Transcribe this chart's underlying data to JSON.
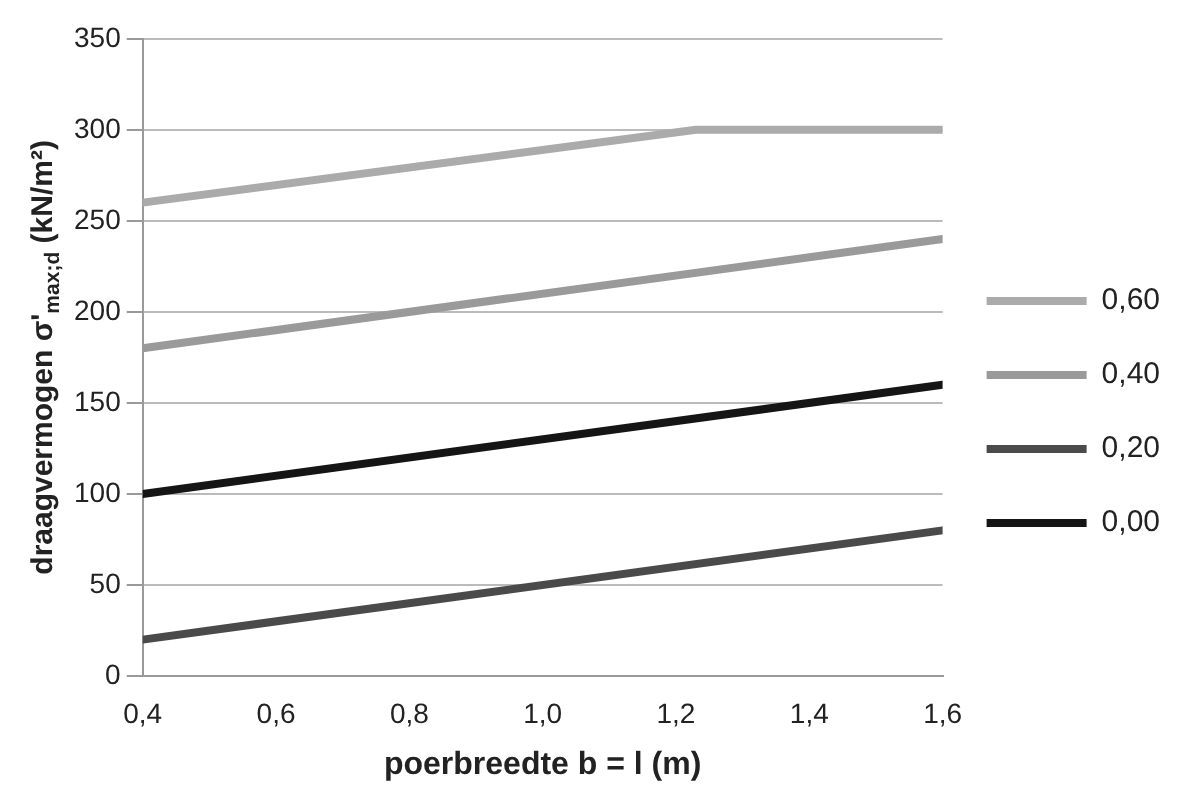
{
  "chart_data": {
    "type": "line",
    "xlabel": "poerbreedte b = l (m)",
    "ylabel": "draagvermogen σ'$_{max;d}$ (kN/m²)",
    "xlim": [
      0.4,
      1.6
    ],
    "xticks": [
      {
        "value": 0.4,
        "label": "0,4"
      },
      {
        "value": 0.6,
        "label": "0,6"
      },
      {
        "value": 0.8,
        "label": "0,8"
      },
      {
        "value": 1.0,
        "label": "1,0"
      },
      {
        "value": 1.2,
        "label": "1,2"
      },
      {
        "value": 1.4,
        "label": "1,4"
      },
      {
        "value": 1.6,
        "label": "1,6"
      }
    ],
    "ylim": [
      0,
      350
    ],
    "yticks": [
      0,
      50,
      100,
      150,
      200,
      250,
      300,
      350
    ],
    "grid": "y",
    "legend": "right",
    "marker": "none",
    "line_style": "solid",
    "series": [
      {
        "name": "0,60",
        "color": "#ababab",
        "x": [
          0.4,
          1.23,
          1.6
        ],
        "values": [
          260,
          300,
          300
        ]
      },
      {
        "name": "0,40",
        "color": "#9a9a9a",
        "x": [
          0.4,
          1.6
        ],
        "values": [
          180,
          240
        ]
      },
      {
        "name": "0,20",
        "color": "#4a4a4a",
        "x": [
          0.4,
          1.6
        ],
        "values": [
          20,
          80
        ]
      },
      {
        "name": "0,00",
        "color": "#151515",
        "x": [
          0.4,
          1.6
        ],
        "values": [
          100,
          160
        ]
      }
    ]
  }
}
